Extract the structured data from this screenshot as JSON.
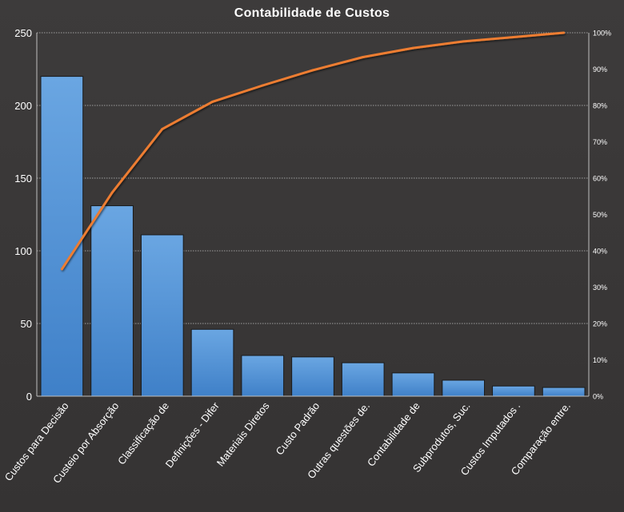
{
  "chart_data": {
    "type": "bar",
    "title": "Contabilidade  de Custos",
    "categories": [
      "Custos para Decisão",
      "Custeio por Absorção",
      "Classificação de",
      "Definições - Difer",
      "Materiais Diretos",
      "Custo Padrão",
      "Outras questões de.",
      "Contabilidade de",
      "Subprodutos,  Suc.",
      "Custos Imputados .",
      "Comparação entre."
    ],
    "series": [
      {
        "type": "bar",
        "axis": "primary",
        "values": [
          220,
          131,
          111,
          46,
          28,
          27,
          23,
          16,
          11,
          7,
          6
        ]
      },
      {
        "type": "line",
        "axis": "secondary",
        "values": [
          0.35,
          0.56,
          0.735,
          0.81,
          0.855,
          0.897,
          0.933,
          0.958,
          0.976,
          0.988,
          1.0
        ]
      }
    ],
    "y_ticks": [
      "0",
      "50",
      "100",
      "150",
      "200",
      "250"
    ],
    "y_range": [
      0,
      250
    ],
    "y2_ticks": [
      "0%",
      "10%",
      "20%",
      "30%",
      "40%",
      "50%",
      "60%",
      "70%",
      "80%",
      "90%",
      "100%"
    ],
    "y2_range": [
      0,
      1
    ],
    "grid": "horizontal dotted",
    "legend": "none",
    "colors": {
      "background": "#3a3838",
      "bar_top": "#6aa6e2",
      "bar_bottom": "#3f80c8",
      "line": "#ed7d31",
      "text": "#ffffff",
      "grid": "#bfbfbf"
    }
  }
}
